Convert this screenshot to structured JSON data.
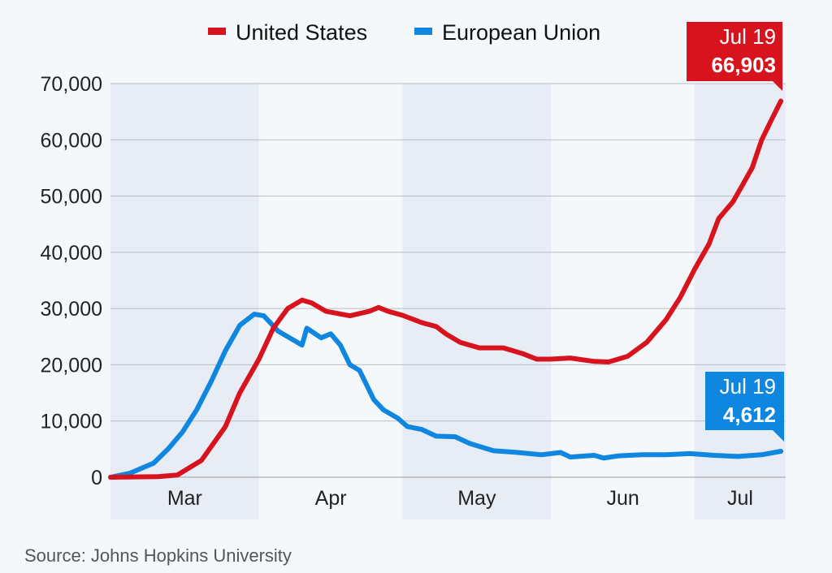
{
  "chart_data": {
    "type": "line",
    "title": "",
    "xlabel": "",
    "ylabel": "",
    "x_unit": "days since Mar 1",
    "xlim": [
      0,
      141
    ],
    "ylim": [
      0,
      70000
    ],
    "y_ticks": [
      0,
      10000,
      20000,
      30000,
      40000,
      50000,
      60000,
      70000
    ],
    "y_tick_labels": [
      "0",
      "10,000",
      "20,000",
      "30,000",
      "40,000",
      "50,000",
      "60,000",
      "70,000"
    ],
    "months": [
      {
        "label": "Mar",
        "start": 0,
        "end": 31,
        "shaded": true
      },
      {
        "label": "Apr",
        "start": 31,
        "end": 61,
        "shaded": false
      },
      {
        "label": "May",
        "start": 61,
        "end": 92,
        "shaded": true
      },
      {
        "label": "Jun",
        "start": 92,
        "end": 122,
        "shaded": false
      },
      {
        "label": "Jul",
        "start": 122,
        "end": 141,
        "shaded": true
      }
    ],
    "grid": true,
    "legend_position": "top-center",
    "series": [
      {
        "name": "United States",
        "color": "#d7141e",
        "x": [
          0,
          10,
          14,
          19,
          24,
          27,
          31,
          34,
          37,
          40,
          42,
          45,
          50,
          54,
          56,
          58,
          61,
          65,
          68,
          70,
          73,
          77,
          82,
          86,
          89,
          92,
          96,
          101,
          104,
          108,
          112,
          116,
          119,
          122,
          125,
          127,
          130,
          132,
          134,
          136,
          138,
          140
        ],
        "y": [
          0,
          100,
          400,
          3000,
          9000,
          15000,
          21000,
          26500,
          30000,
          31500,
          31000,
          29500,
          28700,
          29500,
          30200,
          29500,
          28800,
          27500,
          26800,
          25500,
          24000,
          23000,
          23000,
          22000,
          21000,
          21000,
          21200,
          20600,
          20500,
          21500,
          24000,
          28000,
          32000,
          37000,
          41500,
          46000,
          49000,
          52000,
          55000,
          60000,
          63500,
          66903
        ],
        "callout": {
          "date": "Jul 19",
          "value": "66,903"
        }
      },
      {
        "name": "European Union",
        "color": "#0f86e0",
        "x": [
          0,
          4,
          9,
          12,
          15,
          18,
          21,
          24,
          27,
          30,
          32,
          35,
          38,
          40,
          41,
          44,
          46,
          48,
          50,
          52,
          55,
          57,
          60,
          62,
          65,
          68,
          72,
          75,
          80,
          85,
          90,
          94,
          96,
          101,
          103,
          106,
          111,
          116,
          121,
          126,
          131,
          136,
          140
        ],
        "y": [
          0,
          700,
          2500,
          5000,
          8000,
          12000,
          17000,
          22500,
          27000,
          29000,
          28700,
          26000,
          24500,
          23500,
          26500,
          24800,
          25500,
          23500,
          20000,
          19000,
          13800,
          12000,
          10500,
          9000,
          8500,
          7300,
          7200,
          6000,
          4700,
          4400,
          4000,
          4400,
          3600,
          3900,
          3400,
          3800,
          4000,
          4000,
          4200,
          3900,
          3700,
          4000,
          4612
        ],
        "callout": {
          "date": "Jul 19",
          "value": "4,612"
        }
      }
    ],
    "source": "Source: Johns Hopkins University"
  }
}
